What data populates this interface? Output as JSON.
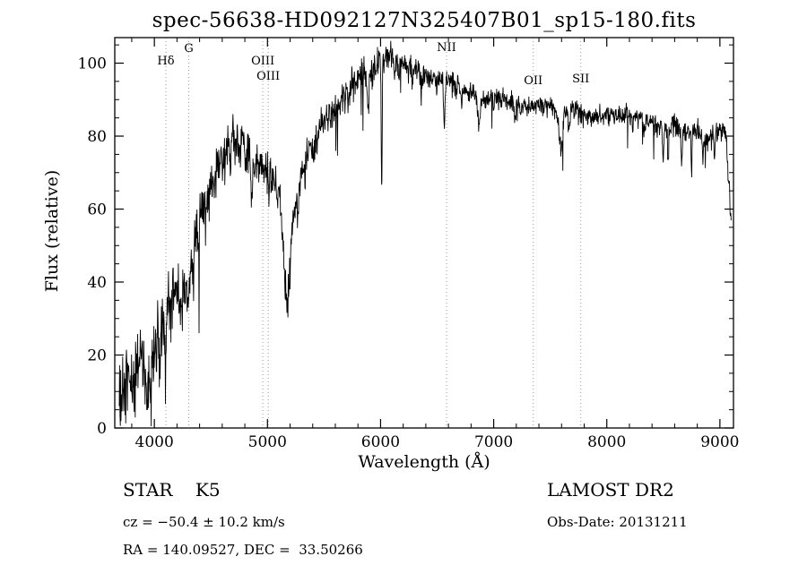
{
  "title": "spec-56638-HD092127N325407B01_sp15-180.fits",
  "annotations": {
    "object_type": "STAR    K5",
    "survey": "LAMOST DR2",
    "cz": "cz = −50.4 ± 10.2 km/s",
    "obs_date": "Obs-Date: 20131211",
    "coords": "RA = 140.09527, DEC =  33.50266"
  },
  "chart_data": {
    "type": "line",
    "title": "spec-56638-HD092127N325407B01_sp15-180.fits",
    "xlabel": "Wavelength (Å)",
    "ylabel": "Flux (relative)",
    "xlim": [
      3650,
      9120
    ],
    "ylim": [
      0,
      107
    ],
    "xticks": [
      4000,
      5000,
      6000,
      7000,
      8000,
      9000
    ],
    "yticks": [
      0,
      20,
      40,
      60,
      80,
      100
    ],
    "x_minor_step": 200,
    "y_minor_step": 5,
    "grid": false,
    "legend": "none",
    "line_color": "#000000",
    "frame_color": "#000000",
    "marker_line_color": "#999999",
    "data_range": [
      3690,
      9100
    ],
    "sample_step": 3,
    "markers": [
      {
        "label": "Hδ",
        "wavelength": 4102,
        "label_dy": 30
      },
      {
        "label": "G",
        "wavelength": 4305,
        "label_dy": 16
      },
      {
        "label": "OIII",
        "wavelength": 4959,
        "label_dy": 30
      },
      {
        "label": "OIII",
        "wavelength": 5007,
        "label_dy": 47
      },
      {
        "label": "NII",
        "wavelength": 6583,
        "label_dy": 15
      },
      {
        "label": "OII",
        "wavelength": 7350,
        "label_dy": 52
      },
      {
        "label": "SII",
        "wavelength": 7770,
        "label_dy": 50
      }
    ],
    "continuum": [
      [
        3690,
        6
      ],
      [
        3750,
        13
      ],
      [
        3800,
        12
      ],
      [
        3850,
        17
      ],
      [
        3900,
        18
      ],
      [
        3950,
        16
      ],
      [
        4000,
        22
      ],
      [
        4050,
        27
      ],
      [
        4100,
        30
      ],
      [
        4150,
        36
      ],
      [
        4200,
        38
      ],
      [
        4250,
        36
      ],
      [
        4300,
        42
      ],
      [
        4350,
        50
      ],
      [
        4400,
        57
      ],
      [
        4450,
        62
      ],
      [
        4500,
        66
      ],
      [
        4550,
        70
      ],
      [
        4600,
        74
      ],
      [
        4650,
        77
      ],
      [
        4700,
        79
      ],
      [
        4750,
        78
      ],
      [
        4800,
        77
      ],
      [
        4850,
        73
      ],
      [
        4900,
        73
      ],
      [
        4950,
        72
      ],
      [
        5000,
        70
      ],
      [
        5050,
        67
      ],
      [
        5100,
        63
      ],
      [
        5150,
        55
      ],
      [
        5200,
        52
      ],
      [
        5250,
        62
      ],
      [
        5300,
        70
      ],
      [
        5350,
        74
      ],
      [
        5400,
        78
      ],
      [
        5450,
        81
      ],
      [
        5500,
        84
      ],
      [
        5550,
        86
      ],
      [
        5600,
        88
      ],
      [
        5650,
        90
      ],
      [
        5700,
        92
      ],
      [
        5750,
        94
      ],
      [
        5800,
        96
      ],
      [
        5850,
        97
      ],
      [
        5900,
        96
      ],
      [
        5950,
        99
      ],
      [
        6000,
        101
      ],
      [
        6050,
        102
      ],
      [
        6100,
        102
      ],
      [
        6150,
        101
      ],
      [
        6200,
        100
      ],
      [
        6300,
        98
      ],
      [
        6400,
        96
      ],
      [
        6500,
        96
      ],
      [
        6600,
        95
      ],
      [
        6700,
        93
      ],
      [
        6800,
        92
      ],
      [
        6900,
        90
      ],
      [
        7000,
        91
      ],
      [
        7100,
        90
      ],
      [
        7200,
        89
      ],
      [
        7300,
        88
      ],
      [
        7400,
        89
      ],
      [
        7500,
        88
      ],
      [
        7600,
        85
      ],
      [
        7700,
        87
      ],
      [
        7800,
        86
      ],
      [
        7900,
        85
      ],
      [
        8000,
        86
      ],
      [
        8100,
        85
      ],
      [
        8200,
        86
      ],
      [
        8300,
        85
      ],
      [
        8400,
        84
      ],
      [
        8500,
        82
      ],
      [
        8600,
        83
      ],
      [
        8700,
        81
      ],
      [
        8800,
        81
      ],
      [
        8900,
        79
      ],
      [
        9000,
        82
      ],
      [
        9050,
        82
      ],
      [
        9100,
        57
      ]
    ],
    "absorption_lines": [
      [
        3934,
        12,
        6
      ],
      [
        3969,
        10,
        6
      ],
      [
        4045,
        8,
        4
      ],
      [
        4101,
        11,
        6
      ],
      [
        4144,
        7,
        4
      ],
      [
        4227,
        9,
        5
      ],
      [
        4300,
        8,
        8
      ],
      [
        4340,
        9,
        5
      ],
      [
        4383,
        8,
        4
      ],
      [
        4455,
        7,
        4
      ],
      [
        4531,
        6,
        4
      ],
      [
        4668,
        6,
        4
      ],
      [
        4861,
        9,
        6
      ],
      [
        4920,
        5,
        4
      ],
      [
        5015,
        5,
        4
      ],
      [
        5170,
        20,
        22
      ],
      [
        5270,
        8,
        6
      ],
      [
        5332,
        5,
        4
      ],
      [
        5406,
        5,
        4
      ],
      [
        5709,
        5,
        4
      ],
      [
        5782,
        4,
        3
      ],
      [
        5890,
        10,
        7
      ],
      [
        6010,
        38,
        4
      ],
      [
        6122,
        6,
        4
      ],
      [
        6162,
        5,
        4
      ],
      [
        6280,
        5,
        4
      ],
      [
        6360,
        4,
        3
      ],
      [
        6495,
        5,
        4
      ],
      [
        6563,
        11,
        6
      ],
      [
        6717,
        5,
        4
      ],
      [
        6870,
        7,
        10
      ],
      [
        7000,
        4,
        4
      ],
      [
        7190,
        5,
        6
      ],
      [
        7594,
        9,
        12
      ],
      [
        7665,
        5,
        6
      ],
      [
        8230,
        4,
        4
      ],
      [
        8330,
        4,
        4
      ],
      [
        8498,
        8,
        5
      ],
      [
        8542,
        10,
        5
      ],
      [
        8662,
        10,
        5
      ],
      [
        8750,
        12,
        4
      ],
      [
        8850,
        9,
        4
      ],
      [
        8950,
        6,
        4
      ]
    ],
    "noise": {
      "seed": 20131211,
      "amplitude": [
        [
          3650,
          8
        ],
        [
          4200,
          7
        ],
        [
          4700,
          5
        ],
        [
          5200,
          4
        ],
        [
          5600,
          3.5
        ],
        [
          6000,
          3
        ],
        [
          6500,
          2.5
        ],
        [
          7000,
          2
        ],
        [
          7600,
          2.2
        ],
        [
          8000,
          2
        ],
        [
          8600,
          2.5
        ],
        [
          9100,
          2.5
        ]
      ],
      "spike_probability": 0.012
    }
  }
}
